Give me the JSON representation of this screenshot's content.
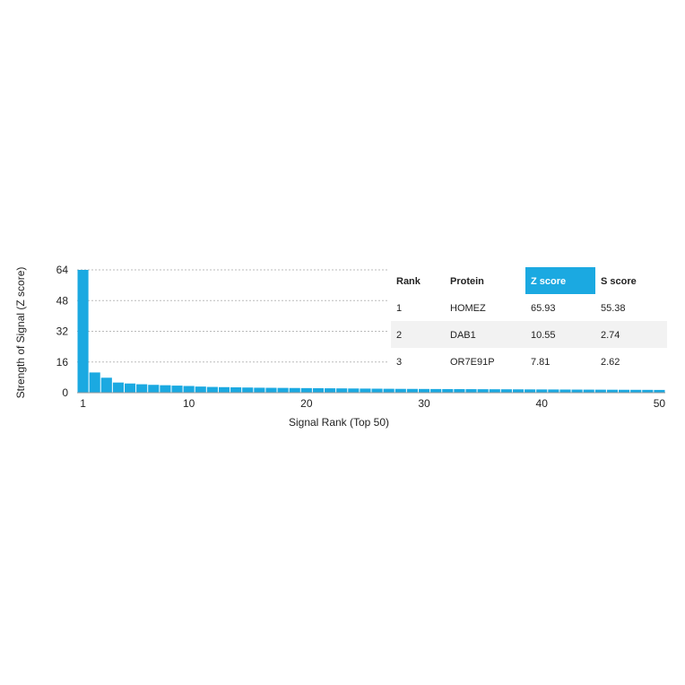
{
  "chart_data": {
    "type": "bar",
    "xlabel": "Signal Rank (Top 50)",
    "ylabel": "Strength of Signal (Z score)",
    "ylim": [
      0,
      64
    ],
    "yticks": [
      0,
      16,
      32,
      48,
      64
    ],
    "xticks": [
      1,
      10,
      20,
      30,
      40,
      50
    ],
    "grid": "horizontal dotted",
    "bar_color": "#1ba9e1",
    "x": [
      1,
      2,
      3,
      4,
      5,
      6,
      7,
      8,
      9,
      10,
      11,
      12,
      13,
      14,
      15,
      16,
      17,
      18,
      19,
      20,
      21,
      22,
      23,
      24,
      25,
      26,
      27,
      28,
      29,
      30,
      31,
      32,
      33,
      34,
      35,
      36,
      37,
      38,
      39,
      40,
      41,
      42,
      43,
      44,
      45,
      46,
      47,
      48,
      49,
      50
    ],
    "values": [
      65.93,
      10.55,
      7.81,
      5.3,
      4.8,
      4.4,
      4.1,
      3.9,
      3.7,
      3.5,
      3.2,
      3.0,
      2.9,
      2.8,
      2.7,
      2.6,
      2.55,
      2.5,
      2.45,
      2.4,
      2.35,
      2.3,
      2.25,
      2.2,
      2.15,
      2.1,
      2.05,
      2.0,
      1.98,
      1.95,
      1.92,
      1.9,
      1.88,
      1.85,
      1.82,
      1.8,
      1.78,
      1.75,
      1.72,
      1.7,
      1.68,
      1.65,
      1.62,
      1.6,
      1.58,
      1.55,
      1.52,
      1.5,
      1.48,
      1.45
    ]
  },
  "table": {
    "headers": [
      "Rank",
      "Protein",
      "Z score",
      "S score"
    ],
    "highlight_column": 2,
    "highlight_color": "#1ba9e1",
    "rows": [
      [
        "1",
        "HOMEZ",
        "65.93",
        "55.38"
      ],
      [
        "2",
        "DAB1",
        "10.55",
        "2.74"
      ],
      [
        "3",
        "OR7E91P",
        "7.81",
        "2.62"
      ]
    ]
  }
}
